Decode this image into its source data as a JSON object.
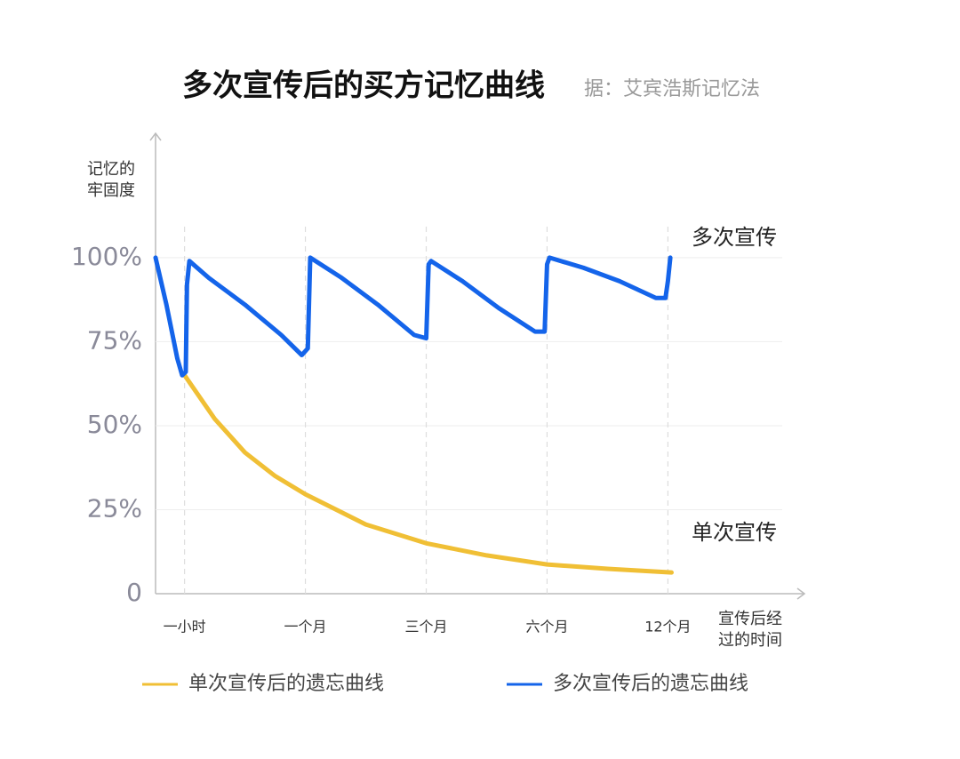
{
  "chart_data": {
    "type": "line",
    "title": "多次宣传后的买方记忆曲线",
    "subtitle": "据：艾宾浩斯记忆法",
    "ylabel": [
      "记忆的",
      "牢固度"
    ],
    "xlabel": [
      "宣传后经",
      "过的时间"
    ],
    "xlim": [
      -0.24,
      5.13
    ],
    "ylim": [
      0,
      137
    ],
    "xticks": [
      {
        "value": 0,
        "label": "一小时"
      },
      {
        "value": 1,
        "label": "一个月"
      },
      {
        "value": 2,
        "label": "三个月"
      },
      {
        "value": 3,
        "label": "六个月"
      },
      {
        "value": 4,
        "label": "12个月"
      }
    ],
    "yticks": [
      {
        "value": 100,
        "label": "100%"
      },
      {
        "value": 75,
        "label": "75%"
      },
      {
        "value": 50,
        "label": "50%"
      },
      {
        "value": 25,
        "label": "25%"
      },
      0
    ],
    "grid": true,
    "series": [
      {
        "name": "单次宣传后的遗忘曲线",
        "color": "#f0bf35",
        "x": [
          0,
          0.25,
          0.5,
          0.75,
          1.0,
          1.5,
          2.0,
          2.5,
          3.0,
          3.5,
          4.03
        ],
        "values": [
          65,
          52,
          42,
          35,
          29.6,
          20.6,
          15,
          11.4,
          8.7,
          7.4,
          6.3
        ]
      },
      {
        "name": "多次宣传后的遗忘曲线",
        "color": "#1464ea",
        "x": [
          -0.24,
          -0.15,
          -0.06,
          -0.02,
          0.01,
          0.02,
          0.04,
          0.2,
          0.5,
          0.8,
          0.97,
          1.02,
          1.04,
          1.3,
          1.6,
          1.9,
          2.0,
          2.02,
          2.04,
          2.3,
          2.6,
          2.9,
          2.98,
          3.0,
          3.02,
          3.3,
          3.6,
          3.9,
          3.98,
          4.0,
          4.02
        ],
        "values": [
          100,
          86,
          70,
          65,
          66,
          92,
          99,
          94,
          86,
          77,
          71,
          73,
          100,
          94,
          86,
          77,
          76,
          98,
          99,
          93,
          85,
          78,
          78,
          98,
          100,
          97,
          93,
          88,
          88,
          93,
          100
        ]
      }
    ],
    "annotations": [
      "单次宣传",
      "多次宣传"
    ]
  }
}
